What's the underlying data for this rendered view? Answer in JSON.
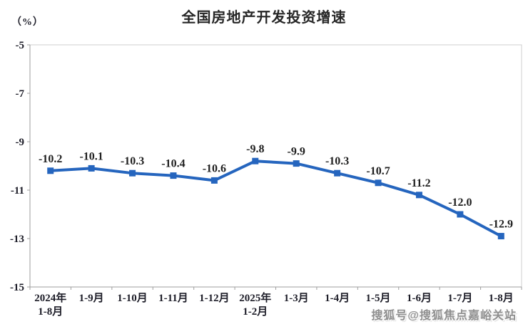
{
  "header": {
    "percent_label": "（%）",
    "title": "全国房地产开发投资增速"
  },
  "watermark": "搜狐号@搜狐焦点嘉峪关站",
  "chart_data": {
    "type": "line",
    "title": "全国房地产开发投资增速",
    "ylabel": "（%）",
    "xlabel": "",
    "categories": [
      [
        "2024年",
        "1-8月"
      ],
      [
        "1-9月"
      ],
      [
        "1-10月"
      ],
      [
        "1-11月"
      ],
      [
        "1-12月"
      ],
      [
        "2025年",
        "1-2月"
      ],
      [
        "1-3月"
      ],
      [
        "1-4月"
      ],
      [
        "1-5月"
      ],
      [
        "1-6月"
      ],
      [
        "1-7月"
      ],
      [
        "1-8月"
      ]
    ],
    "values": [
      -10.2,
      -10.1,
      -10.3,
      -10.4,
      -10.6,
      -9.8,
      -9.9,
      -10.3,
      -10.7,
      -11.2,
      -12.0,
      -12.9
    ],
    "point_labels": [
      "-10.2",
      "-10.1",
      "-10.3",
      "-10.4",
      "-10.6",
      "-9.8",
      "-9.9",
      "-10.3",
      "-10.7",
      "-11.2",
      "-12.0",
      "-12.9"
    ],
    "ylim": [
      -15,
      -5
    ],
    "yticks": [
      "-5",
      "-7",
      "-9",
      "-11",
      "-13",
      "-15"
    ],
    "ytick_values": [
      -5,
      -7,
      -9,
      -11,
      -13,
      -15
    ],
    "grid": false,
    "legend_position": "none",
    "colors": {
      "line": "#2565be",
      "marker": "#2565be",
      "label_text": "#1f1f1f",
      "axis_text": "#1d1d28",
      "axis_line": "#9e9e9e",
      "plot_border": "#cfcfcf"
    }
  }
}
